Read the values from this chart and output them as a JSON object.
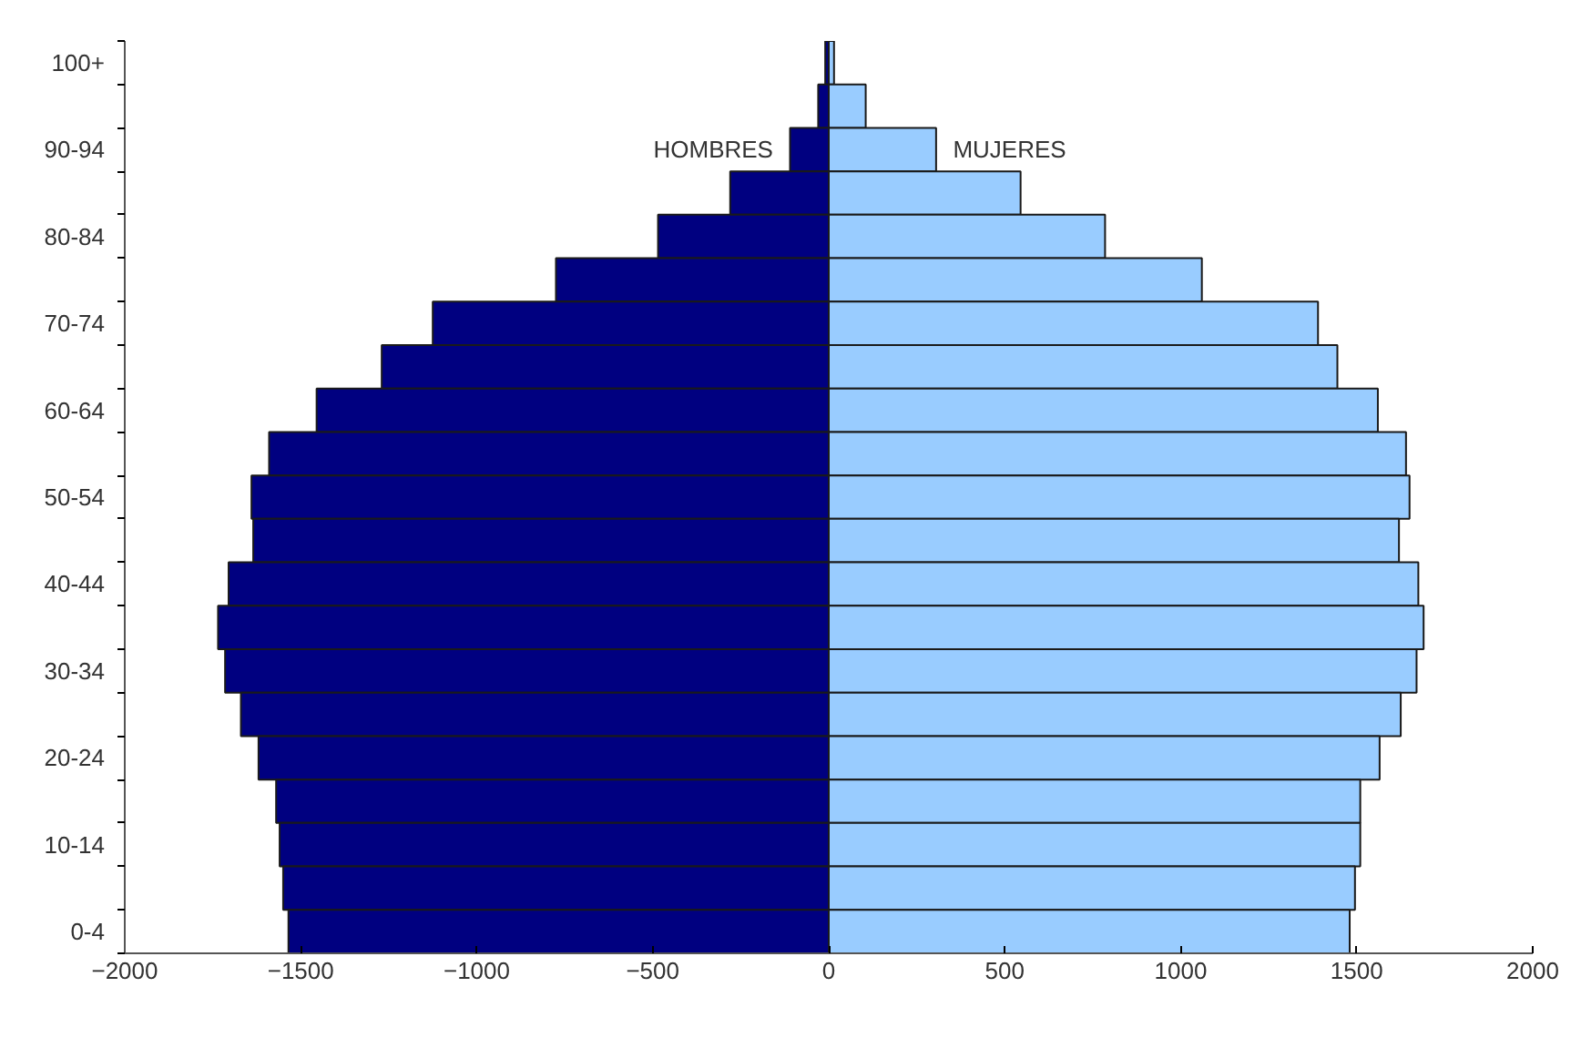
{
  "chart_data": {
    "type": "bar",
    "orientation": "horizontal",
    "categories": [
      "100+",
      null,
      "90-94",
      null,
      "80-84",
      null,
      "70-74",
      null,
      "60-64",
      null,
      "50-54",
      null,
      "40-44",
      null,
      "30-34",
      null,
      "20-24",
      null,
      "10-14",
      null,
      "0-4"
    ],
    "series": [
      {
        "name": "HOMBRES",
        "color": "#000080",
        "values": [
          -10,
          -30,
          -110,
          -280,
          -485,
          -775,
          -1125,
          -1270,
          -1455,
          -1590,
          -1640,
          -1635,
          -1705,
          -1735,
          -1715,
          -1670,
          -1620,
          -1570,
          -1560,
          -1550,
          -1535
        ]
      },
      {
        "name": "MUJERES",
        "color": "#99ccff",
        "values": [
          15,
          105,
          305,
          545,
          785,
          1060,
          1390,
          1445,
          1560,
          1640,
          1650,
          1620,
          1675,
          1690,
          1670,
          1625,
          1565,
          1510,
          1510,
          1495,
          1480
        ]
      }
    ],
    "xlim": [
      -2000,
      2000
    ],
    "xticks": [
      -2000,
      -1500,
      -1000,
      -500,
      0,
      500,
      1000,
      1500,
      2000
    ],
    "grid": false,
    "stacked": true
  }
}
